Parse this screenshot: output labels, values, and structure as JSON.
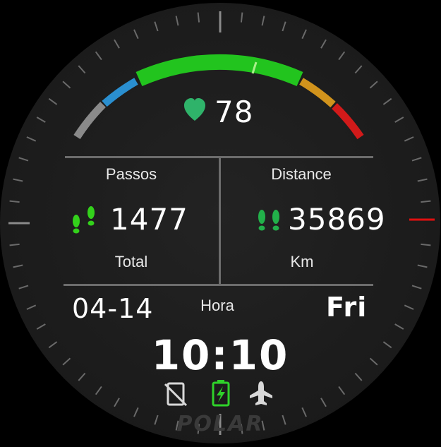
{
  "heart_rate": {
    "value": "78",
    "icon": "heart-icon",
    "icon_color": "#2fb36a",
    "gauge_colors": [
      "#8a8a8a",
      "#2a8fd0",
      "#22c41e",
      "#d1931c",
      "#d11a1a"
    ]
  },
  "steps": {
    "title": "Passos",
    "value": "1477",
    "unit": "Total",
    "icon": "footsteps-icon",
    "icon_color": "#33d11b"
  },
  "distance": {
    "title": "Distance",
    "value": "35869",
    "unit": "Km",
    "icon": "footsteps-icon",
    "icon_color": "#22b04a"
  },
  "date": {
    "date": "04-14",
    "label": "Hora",
    "weekday": "Fri"
  },
  "time": "10:10",
  "status_icons": [
    {
      "name": "phone-disconnected-icon",
      "color": "#d8d8d8"
    },
    {
      "name": "battery-charging-icon",
      "color": "#2fd12a"
    },
    {
      "name": "airplane-mode-icon",
      "color": "#d8d8d8"
    }
  ],
  "brand": "POLAR",
  "colors": {
    "background": "#1f1f1f",
    "accent_marker": "#e01010"
  }
}
